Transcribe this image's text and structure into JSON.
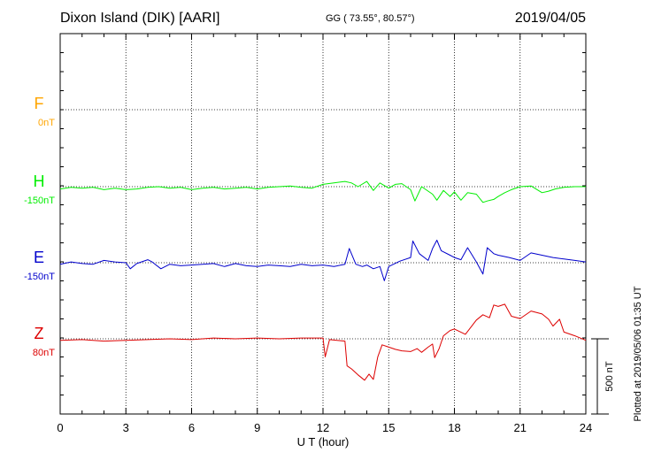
{
  "header": {
    "title": "Dixon Island (DIK)  [AARI]",
    "coords": "GG ( 73.55°,  80.57°)",
    "date": "2019/04/05"
  },
  "chart_data": {
    "type": "line",
    "xlabel": "U T (hour)",
    "xlim": [
      0,
      24
    ],
    "xticks": [
      "0",
      "3",
      "6",
      "9",
      "12",
      "15",
      "18",
      "21",
      "24"
    ],
    "scale_label": "500 nT",
    "scale_nT": 500,
    "plotted_at": "Plotted at 2019/05/06 01:35 UT",
    "grid": true,
    "channels": [
      {
        "name": "F",
        "baseline": "0nT",
        "color": "#ffa500",
        "points": []
      },
      {
        "name": "H",
        "baseline": "-150nT",
        "color": "#00ee00",
        "points": [
          [
            0,
            -15
          ],
          [
            0.5,
            -5
          ],
          [
            1,
            -10
          ],
          [
            1.5,
            -5
          ],
          [
            2,
            -20
          ],
          [
            2.5,
            -10
          ],
          [
            3,
            -20
          ],
          [
            3.5,
            -15
          ],
          [
            4,
            -5
          ],
          [
            4.5,
            0
          ],
          [
            5,
            -10
          ],
          [
            5.5,
            -5
          ],
          [
            6,
            -20
          ],
          [
            6.5,
            -10
          ],
          [
            7,
            -5
          ],
          [
            7.5,
            -15
          ],
          [
            8,
            -10
          ],
          [
            8.5,
            -5
          ],
          [
            9,
            -15
          ],
          [
            9.5,
            -5
          ],
          [
            10,
            0
          ],
          [
            10.5,
            5
          ],
          [
            11,
            -5
          ],
          [
            11.5,
            -10
          ],
          [
            12,
            15
          ],
          [
            12.5,
            25
          ],
          [
            13,
            35
          ],
          [
            13.3,
            25
          ],
          [
            13.6,
            0
          ],
          [
            14,
            35
          ],
          [
            14.3,
            -25
          ],
          [
            14.6,
            25
          ],
          [
            15,
            -10
          ],
          [
            15.3,
            15
          ],
          [
            15.6,
            20
          ],
          [
            16,
            -20
          ],
          [
            16.2,
            -95
          ],
          [
            16.5,
            0
          ],
          [
            17,
            -50
          ],
          [
            17.2,
            -90
          ],
          [
            17.5,
            -25
          ],
          [
            17.8,
            -65
          ],
          [
            18,
            -35
          ],
          [
            18.3,
            -90
          ],
          [
            18.6,
            -40
          ],
          [
            19,
            -50
          ],
          [
            19.3,
            -105
          ],
          [
            19.5,
            -95
          ],
          [
            19.8,
            -85
          ],
          [
            20,
            -65
          ],
          [
            20.3,
            -40
          ],
          [
            20.6,
            -20
          ],
          [
            21,
            0
          ],
          [
            21.5,
            5
          ],
          [
            22,
            -40
          ],
          [
            22.3,
            -30
          ],
          [
            22.6,
            -15
          ],
          [
            23,
            -5
          ],
          [
            23.5,
            0
          ],
          [
            24,
            0
          ]
        ]
      },
      {
        "name": "E",
        "baseline": "-150nT",
        "color": "#0000cc",
        "points": [
          [
            0,
            -10
          ],
          [
            0.5,
            5
          ],
          [
            1,
            -5
          ],
          [
            1.5,
            -10
          ],
          [
            2,
            15
          ],
          [
            2.5,
            5
          ],
          [
            3,
            0
          ],
          [
            3.2,
            -40
          ],
          [
            3.5,
            -5
          ],
          [
            4,
            20
          ],
          [
            4.2,
            5
          ],
          [
            4.6,
            -40
          ],
          [
            5,
            -10
          ],
          [
            5.5,
            -20
          ],
          [
            6,
            -15
          ],
          [
            6.5,
            -10
          ],
          [
            7,
            -5
          ],
          [
            7.5,
            -25
          ],
          [
            8,
            -5
          ],
          [
            8.5,
            -20
          ],
          [
            9,
            -25
          ],
          [
            9.5,
            -15
          ],
          [
            10,
            -20
          ],
          [
            10.5,
            -25
          ],
          [
            11,
            -10
          ],
          [
            11.5,
            -20
          ],
          [
            12,
            -15
          ],
          [
            12.5,
            -25
          ],
          [
            13,
            -10
          ],
          [
            13.2,
            95
          ],
          [
            13.5,
            -10
          ],
          [
            13.8,
            -25
          ],
          [
            14,
            -15
          ],
          [
            14.3,
            -40
          ],
          [
            14.6,
            -25
          ],
          [
            14.8,
            -120
          ],
          [
            15,
            -25
          ],
          [
            15.5,
            10
          ],
          [
            16,
            35
          ],
          [
            16.1,
            145
          ],
          [
            16.4,
            60
          ],
          [
            16.8,
            15
          ],
          [
            17,
            95
          ],
          [
            17.2,
            150
          ],
          [
            17.4,
            80
          ],
          [
            17.8,
            50
          ],
          [
            18,
            35
          ],
          [
            18.3,
            20
          ],
          [
            18.6,
            100
          ],
          [
            19,
            5
          ],
          [
            19.3,
            -75
          ],
          [
            19.5,
            100
          ],
          [
            19.8,
            60
          ],
          [
            20,
            50
          ],
          [
            20.5,
            35
          ],
          [
            21,
            15
          ],
          [
            21.5,
            65
          ],
          [
            22,
            50
          ],
          [
            22.5,
            35
          ],
          [
            23,
            25
          ],
          [
            23.5,
            15
          ],
          [
            24,
            5
          ]
        ]
      },
      {
        "name": "Z",
        "baseline": "80nT",
        "color": "#dd0000",
        "points": [
          [
            0,
            -10
          ],
          [
            1,
            -5
          ],
          [
            2,
            -15
          ],
          [
            3,
            -10
          ],
          [
            4,
            -5
          ],
          [
            5,
            0
          ],
          [
            6,
            -5
          ],
          [
            7,
            5
          ],
          [
            8,
            0
          ],
          [
            9,
            5
          ],
          [
            10,
            0
          ],
          [
            11,
            5
          ],
          [
            12,
            5
          ],
          [
            12.1,
            -120
          ],
          [
            12.3,
            -5
          ],
          [
            13,
            -15
          ],
          [
            13.1,
            -180
          ],
          [
            13.3,
            -200
          ],
          [
            13.6,
            -240
          ],
          [
            13.9,
            -275
          ],
          [
            14.1,
            -235
          ],
          [
            14.3,
            -270
          ],
          [
            14.5,
            -120
          ],
          [
            14.7,
            -40
          ],
          [
            15,
            -55
          ],
          [
            15.3,
            -70
          ],
          [
            15.6,
            -80
          ],
          [
            16,
            -85
          ],
          [
            16.3,
            -65
          ],
          [
            16.5,
            -90
          ],
          [
            16.8,
            -55
          ],
          [
            17,
            -35
          ],
          [
            17.1,
            -125
          ],
          [
            17.3,
            -65
          ],
          [
            17.5,
            20
          ],
          [
            17.8,
            55
          ],
          [
            18,
            65
          ],
          [
            18.5,
            30
          ],
          [
            19,
            125
          ],
          [
            19.3,
            160
          ],
          [
            19.6,
            140
          ],
          [
            19.8,
            225
          ],
          [
            20,
            215
          ],
          [
            20.3,
            230
          ],
          [
            20.6,
            150
          ],
          [
            21,
            135
          ],
          [
            21.5,
            185
          ],
          [
            22,
            165
          ],
          [
            22.3,
            130
          ],
          [
            22.5,
            85
          ],
          [
            22.8,
            130
          ],
          [
            23,
            45
          ],
          [
            23.5,
            20
          ],
          [
            24,
            -10
          ]
        ]
      }
    ]
  }
}
